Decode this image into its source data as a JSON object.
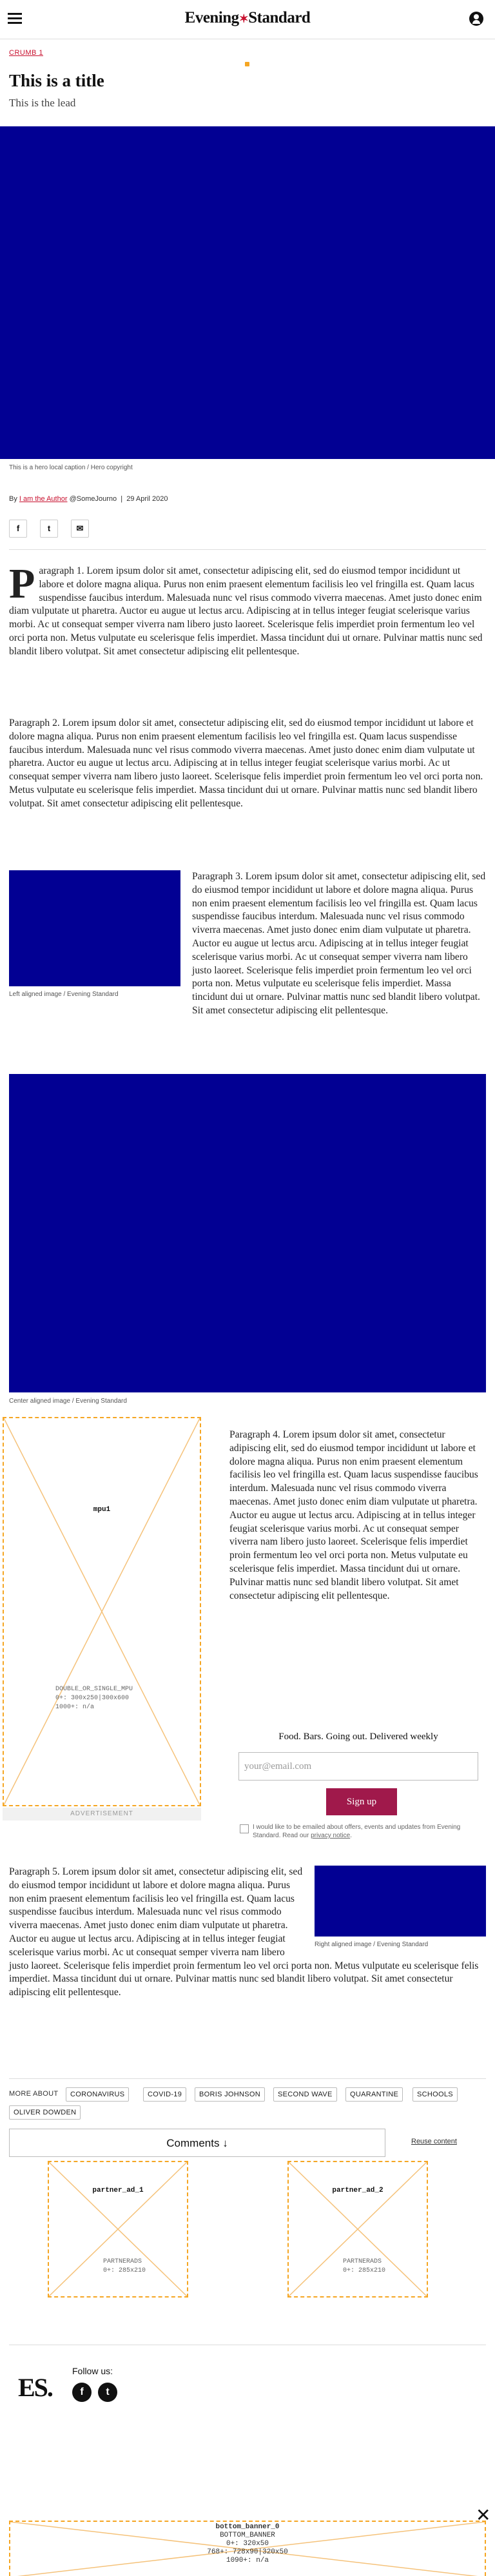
{
  "header": {
    "logo_part1": "Evening",
    "logo_star": "✶",
    "logo_part2": "Standard",
    "menu_icon": "hamburger-icon",
    "account_icon": "user-icon"
  },
  "breadcrumb": "CRUMB 1",
  "article": {
    "title": "This is a title",
    "lead": "This is the lead",
    "hero_caption": "This is a hero local caption / Hero copyright",
    "byline_prefix": "By",
    "author": "I am the Author",
    "handle": "@SomeJourno",
    "separator": "|",
    "date": "29 April 2020",
    "share": [
      {
        "icon": "facebook-icon",
        "glyph": "f"
      },
      {
        "icon": "twitter-icon",
        "glyph": "t"
      },
      {
        "icon": "email-icon",
        "glyph": "✉"
      }
    ],
    "p1_drop": "P",
    "p1": "aragraph 1. Lorem ipsum dolor sit amet, consectetur adipiscing elit, sed do eiusmod tempor incididunt ut labore et dolore magna aliqua. Purus non enim praesent elementum facilisis leo vel fringilla est. Quam lacus suspendisse faucibus interdum. Malesuada nunc vel risus commodo viverra maecenas. Amet justo donec enim diam vulputate ut pharetra. Auctor eu augue ut lectus arcu. Adipiscing at in tellus integer feugiat scelerisque varius morbi. Ac ut consequat semper viverra nam libero justo laoreet. Scelerisque felis imperdiet proin fermentum leo vel orci porta non. Metus vulputate eu scelerisque felis imperdiet. Massa tincidunt dui ut ornare. Pulvinar mattis nunc sed blandit libero volutpat. Sit amet consectetur adipiscing elit pellentesque.",
    "p2": "Paragraph 2. Lorem ipsum dolor sit amet, consectetur adipiscing elit, sed do eiusmod tempor incididunt ut labore et dolore magna aliqua. Purus non enim praesent elementum facilisis leo vel fringilla est. Quam lacus suspendisse faucibus interdum. Malesuada nunc vel risus commodo viverra maecenas. Amet justo donec enim diam vulputate ut pharetra. Auctor eu augue ut lectus arcu. Adipiscing at in tellus integer feugiat scelerisque varius morbi. Ac ut consequat semper viverra nam libero justo laoreet. Scelerisque felis imperdiet proin fermentum leo vel orci porta non. Metus vulputate eu scelerisque felis imperdiet. Massa tincidunt dui ut ornare. Pulvinar mattis nunc sed blandit libero volutpat. Sit amet consectetur adipiscing elit pellentesque.",
    "left_caption": "Left aligned image / Evening Standard",
    "p3": "Paragraph 3. Lorem ipsum dolor sit amet, consectetur adipiscing elit, sed do eiusmod tempor incididunt ut labore et dolore magna aliqua. Purus non enim praesent elementum facilisis leo vel fringilla est. Quam lacus suspendisse faucibus interdum. Malesuada nunc vel risus commodo viverra maecenas. Amet justo donec enim diam vulputate ut pharetra. Auctor eu augue ut lectus arcu. Adipiscing at in tellus integer feugiat scelerisque varius morbi. Ac ut consequat semper viverra nam libero justo laoreet. Scelerisque felis imperdiet proin fermentum leo vel orci porta non. Metus vulputate eu scelerisque felis imperdiet. Massa tincidunt dui ut ornare. Pulvinar mattis nunc sed blandit libero volutpat. Sit amet consectetur adipiscing elit pellentesque.",
    "center_caption": "Center aligned image / Evening Standard",
    "p4": "Paragraph 4. Lorem ipsum dolor sit amet, consectetur adipiscing elit, sed do eiusmod tempor incididunt ut labore et dolore magna aliqua. Purus non enim praesent elementum facilisis leo vel fringilla est. Quam lacus suspendisse faucibus interdum. Malesuada nunc vel risus commodo viverra maecenas. Amet justo donec enim diam vulputate ut pharetra. Auctor eu augue ut lectus arcu. Adipiscing at in tellus integer feugiat scelerisque varius morbi. Ac ut consequat semper viverra nam libero justo laoreet. Scelerisque felis imperdiet proin fermentum leo vel orci porta non. Metus vulputate eu scelerisque felis imperdiet. Massa tincidunt dui ut ornare. Pulvinar mattis nunc sed blandit libero volutpat. Sit amet consectetur adipiscing elit pellentesque.",
    "p5": "Paragraph 5. Lorem ipsum dolor sit amet, consectetur adipiscing elit, sed do eiusmod tempor incididunt ut labore et dolore magna aliqua. Purus non enim praesent elementum facilisis leo vel fringilla est. Quam lacus suspendisse faucibus interdum. Malesuada nunc vel risus commodo viverra maecenas. Amet justo donec enim diam vulputate ut pharetra. Auctor eu augue ut lectus arcu. Adipiscing at in tellus integer feugiat scelerisque varius morbi. Ac ut consequat semper viverra nam libero justo laoreet. Scelerisque felis imperdiet proin fermentum leo vel orci porta non. Metus vulputate eu scelerisque felis imperdiet. Massa tincidunt dui ut ornare. Pulvinar mattis nunc sed blandit libero volutpat. Sit amet consectetur adipiscing elit pellentesque.",
    "right_caption": "Right aligned image / Evening Standard"
  },
  "mpu": {
    "name": "mpu1",
    "line1": "DOUBLE_OR_SINGLE_MPU",
    "line2": "0+: 300x250|300x600",
    "line3": "1000+: n/a",
    "label": "ADVERTISEMENT"
  },
  "newsletter": {
    "heading": "Food. Bars. Going out. Delivered weekly",
    "email_placeholder": "your@email.com",
    "button": "Sign up",
    "consent_text": "I would like to be emailed about offers, events and updates from Evening Standard. Read our",
    "privacy_link": "privacy notice",
    "consent_end": "."
  },
  "more_about": {
    "label": "MORE ABOUT",
    "tags": [
      "CORONAVIRUS",
      "COVID-19",
      "BORIS JOHNSON",
      "SECOND WAVE",
      "QUARANTINE",
      "SCHOOLS",
      "OLIVER DOWDEN"
    ]
  },
  "comments": {
    "label": "Comments",
    "arrow": "↓",
    "policy_link": "Reuse content"
  },
  "partner_ads": [
    {
      "name": "partner_ad_1",
      "line1": "PARTNERADS",
      "line2": "0+: 285x210"
    },
    {
      "name": "partner_ad_2",
      "line1": "PARTNERADS",
      "line2": "0+: 285x210"
    }
  ],
  "footer": {
    "logo": "ES.",
    "follow_label": "Follow us:",
    "social": [
      {
        "icon": "facebook-icon",
        "glyph": "f"
      },
      {
        "icon": "twitter-icon",
        "glyph": "t"
      }
    ]
  },
  "bottom_banner": {
    "name": "bottom_banner_0",
    "line1": "BOTTOM_BANNER",
    "line2": "0+: 320x50",
    "line3": "768+: 728x90|320x50",
    "line4": "1090+: n/a",
    "close": "✕"
  },
  "colors": {
    "accent": "#c8102e",
    "hero_blue": "#020093",
    "ad_border": "#f5a623",
    "signup": "#a0194b"
  }
}
